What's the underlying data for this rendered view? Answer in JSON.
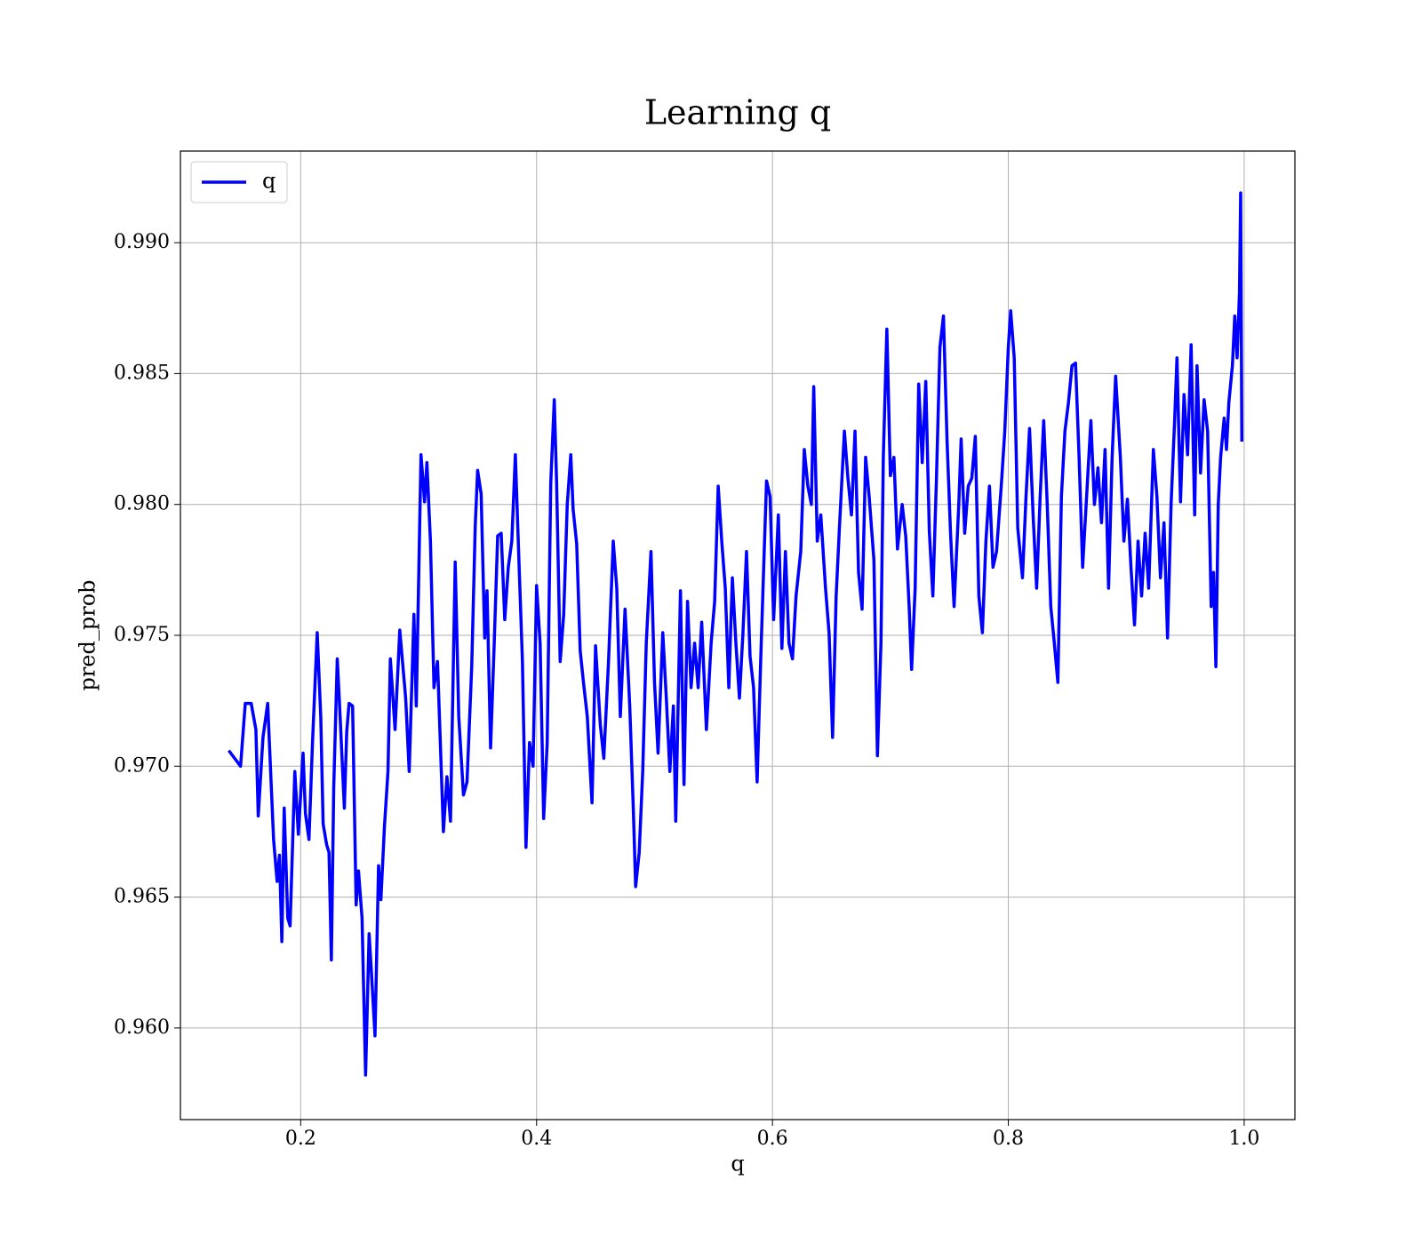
{
  "chart_data": {
    "type": "line",
    "title": "Learning q",
    "x_label": "q",
    "y_label": "pred_prob",
    "x": [
      0.139,
      0.149,
      0.153,
      0.158,
      0.162,
      0.164,
      0.168,
      0.172,
      0.177,
      0.18,
      0.182,
      0.184,
      0.186,
      0.189,
      0.191,
      0.195,
      0.198,
      0.202,
      0.204,
      0.207,
      0.21,
      0.214,
      0.217,
      0.219,
      0.222,
      0.224,
      0.226,
      0.228,
      0.231,
      0.233,
      0.237,
      0.239,
      0.241,
      0.244,
      0.247,
      0.249,
      0.252,
      0.255,
      0.258,
      0.26,
      0.263,
      0.266,
      0.268,
      0.271,
      0.274,
      0.276,
      0.28,
      0.284,
      0.289,
      0.292,
      0.296,
      0.298,
      0.302,
      0.305,
      0.307,
      0.31,
      0.313,
      0.316,
      0.321,
      0.324,
      0.327,
      0.331,
      0.334,
      0.338,
      0.341,
      0.345,
      0.348,
      0.35,
      0.353,
      0.356,
      0.358,
      0.361,
      0.364,
      0.367,
      0.37,
      0.373,
      0.376,
      0.379,
      0.382,
      0.385,
      0.388,
      0.391,
      0.394,
      0.397,
      0.4,
      0.403,
      0.406,
      0.409,
      0.412,
      0.415,
      0.417,
      0.42,
      0.423,
      0.426,
      0.429,
      0.431,
      0.434,
      0.437,
      0.44,
      0.443,
      0.447,
      0.45,
      0.454,
      0.457,
      0.461,
      0.465,
      0.468,
      0.471,
      0.475,
      0.479,
      0.482,
      0.484,
      0.487,
      0.49,
      0.493,
      0.497,
      0.5,
      0.503,
      0.507,
      0.51,
      0.513,
      0.516,
      0.518,
      0.522,
      0.525,
      0.528,
      0.531,
      0.534,
      0.537,
      0.54,
      0.544,
      0.548,
      0.551,
      0.554,
      0.557,
      0.56,
      0.563,
      0.566,
      0.569,
      0.572,
      0.575,
      0.578,
      0.581,
      0.584,
      0.587,
      0.59,
      0.593,
      0.595,
      0.598,
      0.601,
      0.605,
      0.608,
      0.611,
      0.614,
      0.617,
      0.62,
      0.624,
      0.627,
      0.63,
      0.633,
      0.635,
      0.638,
      0.641,
      0.645,
      0.648,
      0.651,
      0.654,
      0.657,
      0.661,
      0.664,
      0.667,
      0.67,
      0.673,
      0.676,
      0.679,
      0.682,
      0.686,
      0.689,
      0.692,
      0.694,
      0.697,
      0.7,
      0.703,
      0.706,
      0.71,
      0.713,
      0.716,
      0.718,
      0.721,
      0.724,
      0.727,
      0.73,
      0.733,
      0.736,
      0.739,
      0.742,
      0.745,
      0.748,
      0.751,
      0.754,
      0.758,
      0.76,
      0.763,
      0.766,
      0.769,
      0.772,
      0.775,
      0.778,
      0.781,
      0.784,
      0.787,
      0.79,
      0.794,
      0.797,
      0.8,
      0.802,
      0.805,
      0.808,
      0.812,
      0.815,
      0.818,
      0.821,
      0.824,
      0.827,
      0.83,
      0.833,
      0.836,
      0.839,
      0.842,
      0.845,
      0.848,
      0.851,
      0.854,
      0.857,
      0.86,
      0.863,
      0.866,
      0.87,
      0.873,
      0.876,
      0.879,
      0.882,
      0.885,
      0.888,
      0.891,
      0.895,
      0.898,
      0.901,
      0.904,
      0.907,
      0.91,
      0.913,
      0.916,
      0.919,
      0.923,
      0.926,
      0.929,
      0.932,
      0.935,
      0.938,
      0.941,
      0.943,
      0.946,
      0.949,
      0.952,
      0.955,
      0.958,
      0.96,
      0.963,
      0.966,
      0.969,
      0.972,
      0.974,
      0.976,
      0.978,
      0.98,
      0.983,
      0.985,
      0.987,
      0.99,
      0.992,
      0.994,
      0.996,
      0.997,
      0.998
    ],
    "series": [
      {
        "name": "q",
        "color": "#0000ff",
        "values": [
          0.9706,
          0.97,
          0.9724,
          0.9724,
          0.9714,
          0.9681,
          0.9711,
          0.9724,
          0.9672,
          0.9656,
          0.9666,
          0.9633,
          0.9684,
          0.9642,
          0.9639,
          0.9698,
          0.9674,
          0.9705,
          0.9682,
          0.9672,
          0.9709,
          0.9751,
          0.9719,
          0.9678,
          0.967,
          0.9667,
          0.9626,
          0.9692,
          0.9741,
          0.9723,
          0.9684,
          0.9713,
          0.9724,
          0.9723,
          0.9647,
          0.966,
          0.9642,
          0.9582,
          0.9636,
          0.9621,
          0.9597,
          0.9662,
          0.9649,
          0.9677,
          0.9698,
          0.9741,
          0.9714,
          0.9752,
          0.9726,
          0.9698,
          0.9758,
          0.9723,
          0.9819,
          0.9801,
          0.9816,
          0.9786,
          0.973,
          0.974,
          0.9675,
          0.9696,
          0.9679,
          0.9778,
          0.9719,
          0.9689,
          0.9694,
          0.9738,
          0.9792,
          0.9813,
          0.9804,
          0.9749,
          0.9767,
          0.9707,
          0.9746,
          0.9788,
          0.9789,
          0.9756,
          0.9776,
          0.9786,
          0.9819,
          0.9779,
          0.974,
          0.9669,
          0.9709,
          0.97,
          0.9769,
          0.9747,
          0.968,
          0.9709,
          0.9808,
          0.984,
          0.9808,
          0.974,
          0.9758,
          0.98,
          0.9819,
          0.9798,
          0.9785,
          0.9744,
          0.9731,
          0.9719,
          0.9686,
          0.9746,
          0.9716,
          0.9703,
          0.974,
          0.9786,
          0.9768,
          0.9719,
          0.976,
          0.9723,
          0.9684,
          0.9654,
          0.9667,
          0.9698,
          0.9747,
          0.9782,
          0.9732,
          0.9705,
          0.9751,
          0.9726,
          0.9698,
          0.9723,
          0.9679,
          0.9767,
          0.9693,
          0.9763,
          0.973,
          0.9747,
          0.973,
          0.9755,
          0.9714,
          0.9747,
          0.9763,
          0.9807,
          0.9786,
          0.9768,
          0.973,
          0.9772,
          0.9747,
          0.9726,
          0.9751,
          0.9782,
          0.9742,
          0.973,
          0.9694,
          0.974,
          0.9782,
          0.9809,
          0.9803,
          0.9756,
          0.9796,
          0.9745,
          0.9782,
          0.9747,
          0.9741,
          0.9765,
          0.9782,
          0.9821,
          0.9807,
          0.98,
          0.9845,
          0.9786,
          0.9796,
          0.9768,
          0.9751,
          0.9711,
          0.9765,
          0.9793,
          0.9828,
          0.981,
          0.9796,
          0.9828,
          0.9774,
          0.976,
          0.9818,
          0.9803,
          0.9779,
          0.9704,
          0.9747,
          0.9818,
          0.9867,
          0.9811,
          0.9818,
          0.9783,
          0.98,
          0.9788,
          0.976,
          0.9737,
          0.9768,
          0.9846,
          0.9816,
          0.9847,
          0.979,
          0.9765,
          0.9809,
          0.986,
          0.9872,
          0.9825,
          0.9789,
          0.9761,
          0.98,
          0.9825,
          0.9789,
          0.9807,
          0.981,
          0.9826,
          0.9765,
          0.9751,
          0.9786,
          0.9807,
          0.9776,
          0.9782,
          0.9807,
          0.9828,
          0.986,
          0.9874,
          0.9856,
          0.9791,
          0.9772,
          0.9803,
          0.9829,
          0.9796,
          0.9768,
          0.9803,
          0.9832,
          0.98,
          0.9761,
          0.9747,
          0.9732,
          0.9803,
          0.9828,
          0.9839,
          0.9853,
          0.9854,
          0.9818,
          0.9776,
          0.98,
          0.9832,
          0.98,
          0.9814,
          0.9793,
          0.9821,
          0.9768,
          0.9818,
          0.9849,
          0.9818,
          0.9786,
          0.9802,
          0.9776,
          0.9754,
          0.9786,
          0.9765,
          0.9789,
          0.9768,
          0.9821,
          0.9803,
          0.9772,
          0.9793,
          0.9749,
          0.98,
          0.9832,
          0.9856,
          0.9801,
          0.9842,
          0.9819,
          0.9861,
          0.9796,
          0.9853,
          0.9812,
          0.984,
          0.9828,
          0.9761,
          0.9774,
          0.9738,
          0.98,
          0.9818,
          0.9833,
          0.9821,
          0.9839,
          0.9853,
          0.9872,
          0.9856,
          0.9881,
          0.9919,
          0.9824
        ]
      }
    ],
    "xlim": [
      0.098,
      1.043
    ],
    "ylim": [
      0.9565,
      0.9935
    ],
    "xticks": [
      0.2,
      0.4,
      0.6,
      0.8,
      {
        "value": 1,
        "label": "1.0"
      }
    ],
    "yticks": [
      {
        "value": 0.96,
        "label": "0.960"
      },
      0.965,
      {
        "value": 0.97,
        "label": "0.970"
      },
      0.975,
      {
        "value": 0.98,
        "label": "0.980"
      },
      0.985,
      {
        "value": 0.99,
        "label": "0.990"
      }
    ],
    "grid": true,
    "legend_position": "upper left"
  }
}
